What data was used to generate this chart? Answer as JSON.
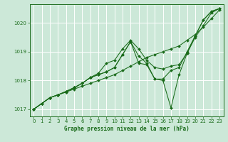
{
  "background_color": "#cce8d8",
  "grid_color": "#aaccbb",
  "line_color": "#1a6b1a",
  "marker_color": "#1a6b1a",
  "xlabel": "Graphe pression niveau de la mer (hPa)",
  "xlim": [
    -0.5,
    23.5
  ],
  "ylim": [
    1016.75,
    1020.65
  ],
  "yticks": [
    1017,
    1018,
    1019,
    1020
  ],
  "xticks": [
    0,
    1,
    2,
    3,
    4,
    5,
    6,
    7,
    8,
    9,
    10,
    11,
    12,
    13,
    14,
    15,
    16,
    17,
    18,
    19,
    20,
    21,
    22,
    23
  ],
  "series": [
    {
      "x": [
        0,
        1,
        2,
        3,
        4,
        5,
        6,
        7,
        8,
        9,
        10,
        11,
        12,
        13,
        14,
        15,
        16,
        17,
        18,
        19,
        20,
        21,
        22,
        23
      ],
      "y": [
        1017.0,
        1017.2,
        1017.4,
        1017.5,
        1017.6,
        1017.7,
        1017.8,
        1017.9,
        1018.0,
        1018.1,
        1018.2,
        1018.35,
        1018.5,
        1018.65,
        1018.8,
        1018.9,
        1019.0,
        1019.1,
        1019.2,
        1019.4,
        1019.6,
        1019.85,
        1020.15,
        1020.45
      ]
    },
    {
      "x": [
        0,
        1,
        2,
        3,
        4,
        5,
        6,
        7,
        8,
        9,
        10,
        11,
        12,
        13,
        14,
        15,
        16,
        17,
        18,
        19,
        20,
        21,
        22,
        23
      ],
      "y": [
        1017.0,
        1017.2,
        1017.4,
        1017.5,
        1017.6,
        1017.75,
        1017.9,
        1018.1,
        1018.25,
        1018.6,
        1018.7,
        1019.1,
        1019.4,
        1019.1,
        1018.7,
        1018.45,
        1018.4,
        1018.5,
        1018.55,
        1018.95,
        1019.5,
        1019.9,
        1020.35,
        1020.5
      ]
    },
    {
      "x": [
        0,
        1,
        2,
        3,
        4,
        5,
        6,
        7,
        8,
        9,
        10,
        11,
        12,
        13,
        14,
        15,
        16,
        17,
        18,
        19,
        20,
        21,
        22,
        23
      ],
      "y": [
        1017.0,
        1017.2,
        1017.4,
        1017.5,
        1017.62,
        1017.75,
        1017.9,
        1018.1,
        1018.2,
        1018.3,
        1018.45,
        1018.9,
        1019.35,
        1018.85,
        1018.6,
        1018.05,
        1018.05,
        1018.35,
        1018.45,
        1019.0,
        1019.55,
        1020.1,
        1020.4,
        1020.5
      ]
    },
    {
      "x": [
        0,
        1,
        2,
        3,
        4,
        5,
        6,
        7,
        8,
        9,
        10,
        11,
        12,
        13,
        14,
        15,
        16,
        17,
        18,
        19,
        20,
        21,
        22,
        23
      ],
      "y": [
        1017.0,
        1017.2,
        1017.4,
        1017.5,
        1017.62,
        1017.75,
        1017.9,
        1018.1,
        1018.2,
        1018.3,
        1018.45,
        1018.9,
        1019.35,
        1018.6,
        1018.55,
        1018.05,
        1018.0,
        1017.05,
        1018.2,
        1018.95,
        1019.55,
        1020.1,
        1020.4,
        1020.5
      ]
    }
  ]
}
